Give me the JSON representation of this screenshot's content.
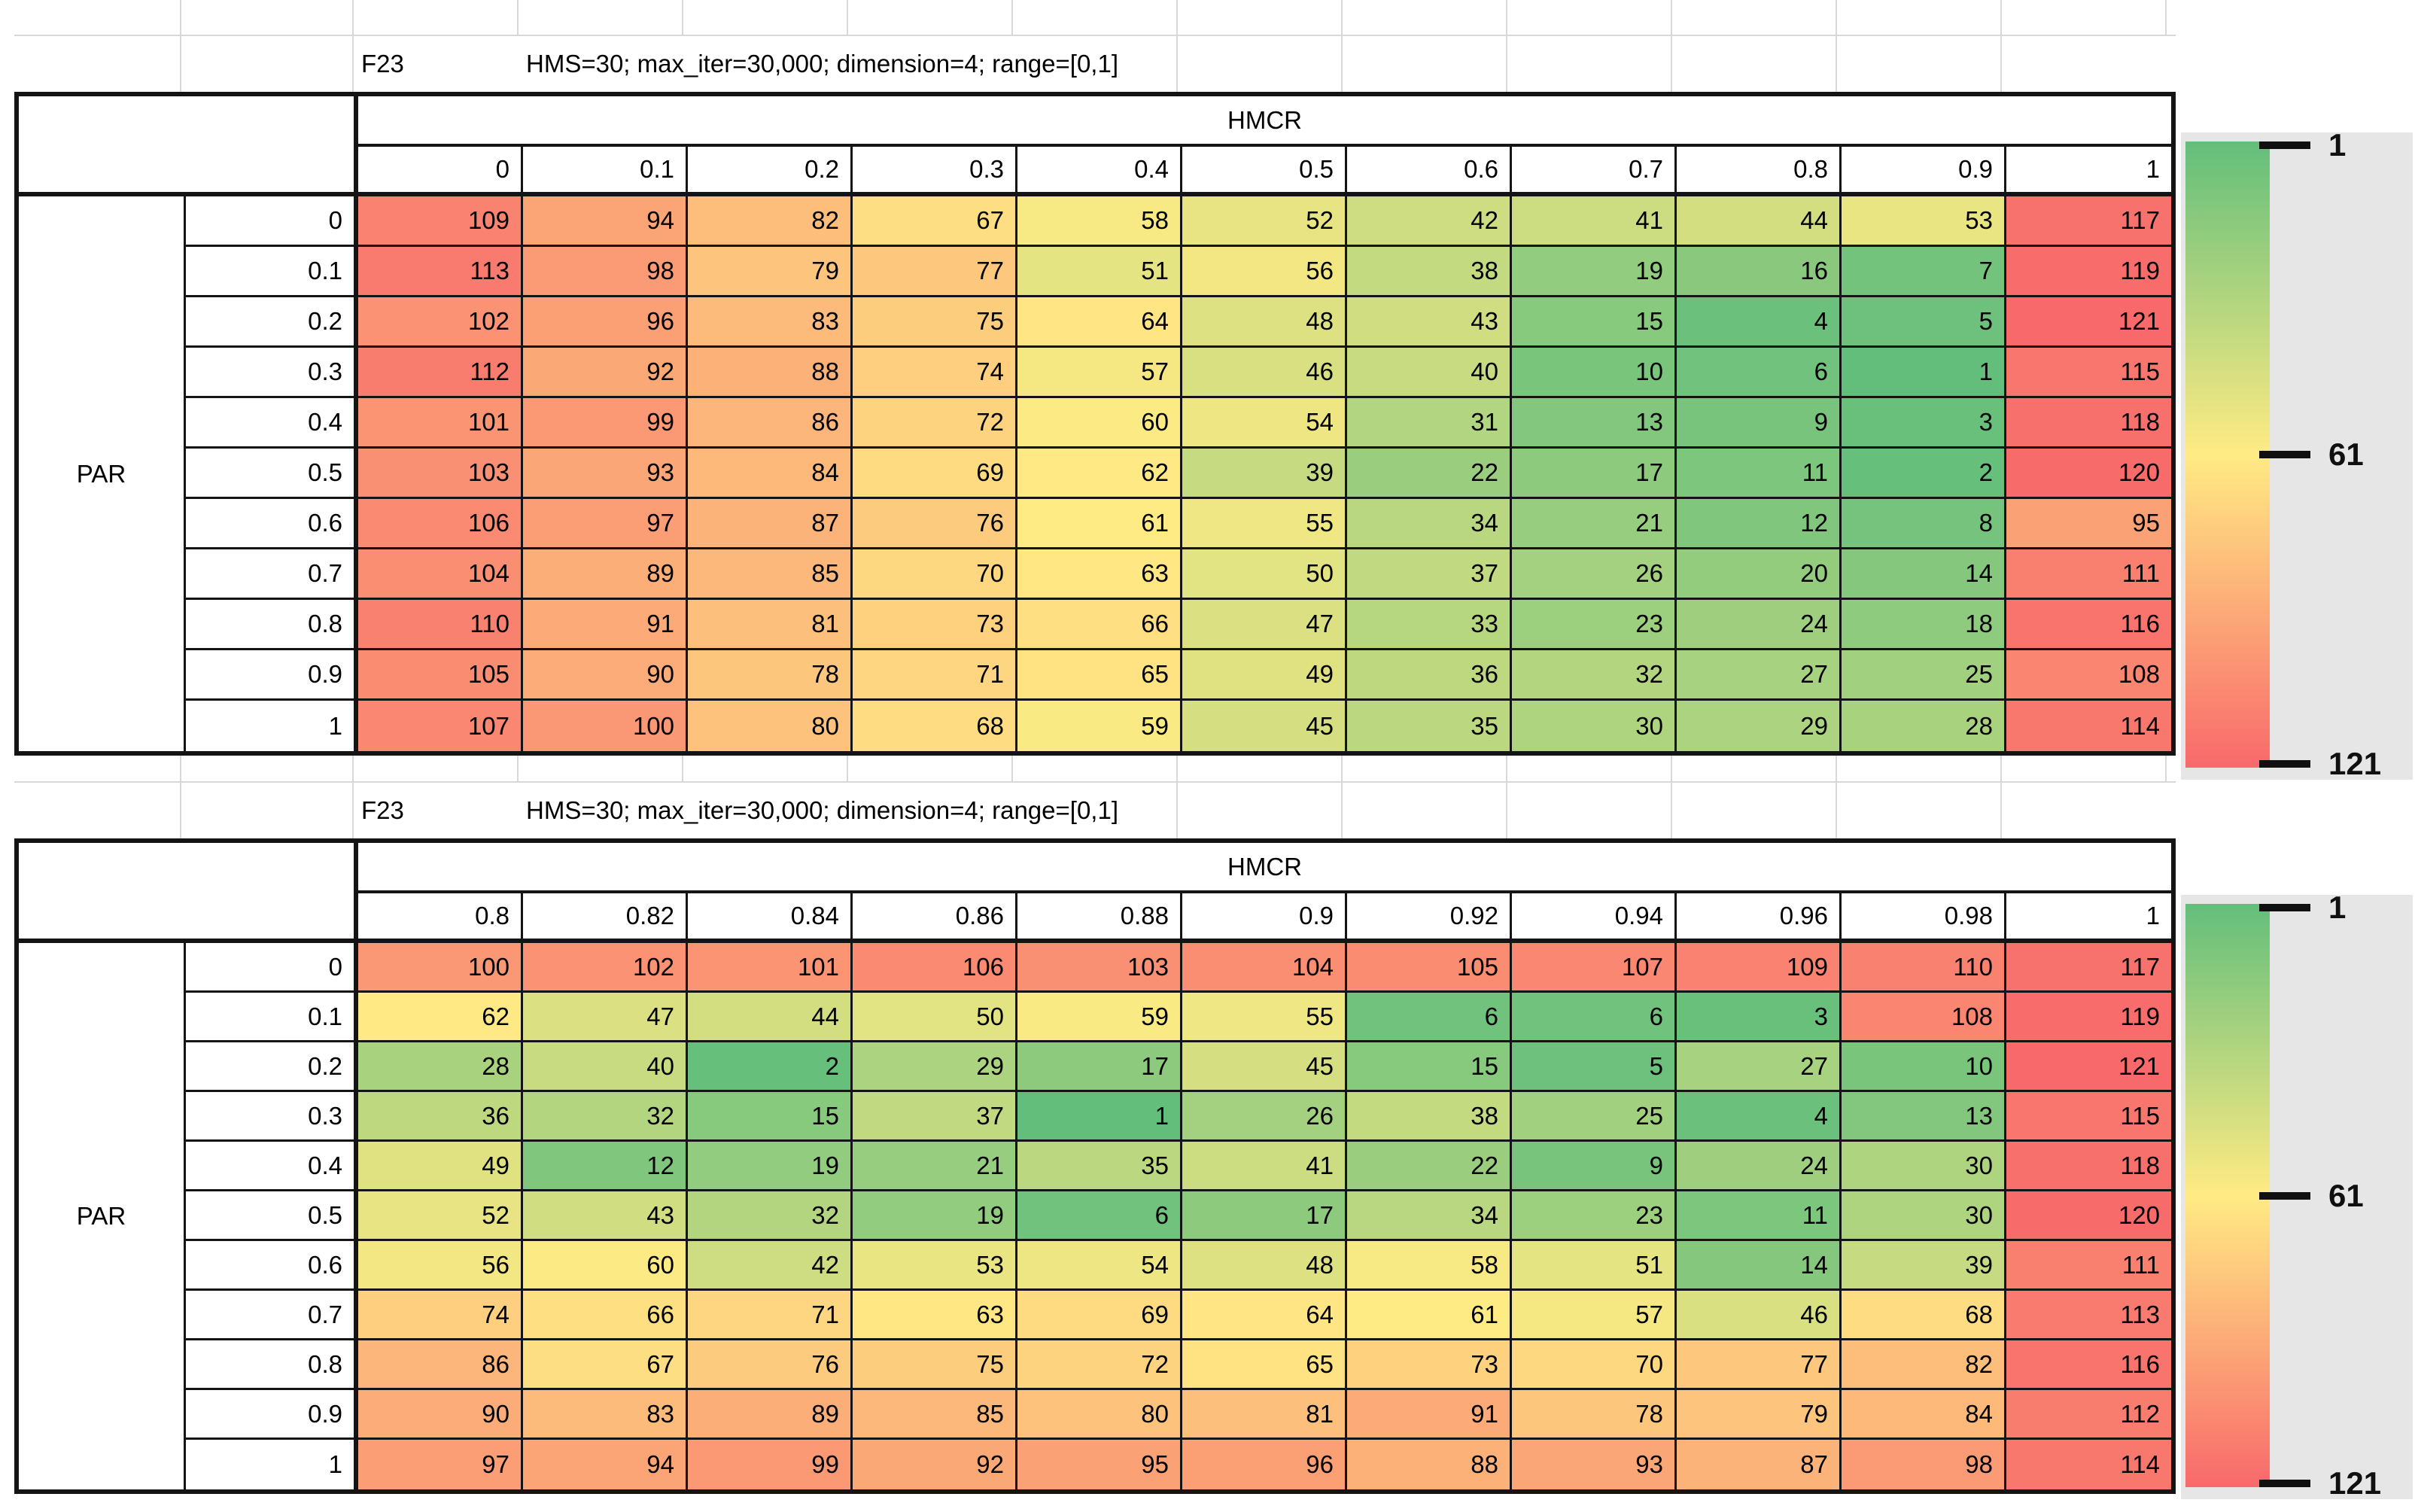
{
  "palette": {
    "scale_green": "#63BE7B",
    "scale_yellow": "#FFEB84",
    "scale_red": "#F8696B",
    "legend_bg": "#E7E6E6",
    "grid_faint": "#D8D8D8",
    "grid_black": "#141414"
  },
  "legend": {
    "ticks": [
      "1",
      "61",
      "121"
    ]
  },
  "chart_data": [
    {
      "type": "heatmap",
      "title": "F23",
      "subtitle": "HMS=30; max_iter=30,000; dimension=4; range=[0,1]",
      "xlabel": "HMCR",
      "ylabel": "PAR",
      "x_ticks": [
        "0",
        "0.1",
        "0.2",
        "0.3",
        "0.4",
        "0.5",
        "0.6",
        "0.7",
        "0.8",
        "0.9",
        "1"
      ],
      "y_ticks": [
        "0",
        "0.1",
        "0.2",
        "0.3",
        "0.4",
        "0.5",
        "0.6",
        "0.7",
        "0.8",
        "0.9",
        "1"
      ],
      "values": [
        [
          109,
          94,
          82,
          67,
          58,
          52,
          42,
          41,
          44,
          53,
          117
        ],
        [
          113,
          98,
          79,
          77,
          51,
          56,
          38,
          19,
          16,
          7,
          119
        ],
        [
          102,
          96,
          83,
          75,
          64,
          48,
          43,
          15,
          4,
          5,
          121
        ],
        [
          112,
          92,
          88,
          74,
          57,
          46,
          40,
          10,
          6,
          1,
          115
        ],
        [
          101,
          99,
          86,
          72,
          60,
          54,
          31,
          13,
          9,
          3,
          118
        ],
        [
          103,
          93,
          84,
          69,
          62,
          39,
          22,
          17,
          11,
          2,
          120
        ],
        [
          106,
          97,
          87,
          76,
          61,
          55,
          34,
          21,
          12,
          8,
          95
        ],
        [
          104,
          89,
          85,
          70,
          63,
          50,
          37,
          26,
          20,
          14,
          111
        ],
        [
          110,
          91,
          81,
          73,
          66,
          47,
          33,
          23,
          24,
          18,
          116
        ],
        [
          105,
          90,
          78,
          71,
          65,
          49,
          36,
          32,
          27,
          25,
          108
        ],
        [
          107,
          100,
          80,
          68,
          59,
          45,
          35,
          30,
          29,
          28,
          114
        ]
      ],
      "colorscale": {
        "min": 1,
        "mid": 61,
        "max": 121
      },
      "legend_ticks": [
        "1",
        "61",
        "121"
      ]
    },
    {
      "type": "heatmap",
      "title": "F23",
      "subtitle": "HMS=30; max_iter=30,000; dimension=4; range=[0,1]",
      "xlabel": "HMCR",
      "ylabel": "PAR",
      "x_ticks": [
        "0.8",
        "0.82",
        "0.84",
        "0.86",
        "0.88",
        "0.9",
        "0.92",
        "0.94",
        "0.96",
        "0.98",
        "1"
      ],
      "y_ticks": [
        "0",
        "0.1",
        "0.2",
        "0.3",
        "0.4",
        "0.5",
        "0.6",
        "0.7",
        "0.8",
        "0.9",
        "1"
      ],
      "values": [
        [
          100,
          102,
          101,
          106,
          103,
          104,
          105,
          107,
          109,
          110,
          117
        ],
        [
          62,
          47,
          44,
          50,
          59,
          55,
          6,
          6,
          3,
          108,
          119
        ],
        [
          28,
          40,
          2,
          29,
          17,
          45,
          15,
          5,
          27,
          10,
          121
        ],
        [
          36,
          32,
          15,
          37,
          1,
          26,
          38,
          25,
          4,
          13,
          115
        ],
        [
          49,
          12,
          19,
          21,
          35,
          41,
          22,
          9,
          24,
          30,
          118
        ],
        [
          52,
          43,
          32,
          19,
          6,
          17,
          34,
          23,
          11,
          30,
          120
        ],
        [
          56,
          60,
          42,
          53,
          54,
          48,
          58,
          51,
          14,
          39,
          111
        ],
        [
          74,
          66,
          71,
          63,
          69,
          64,
          61,
          57,
          46,
          68,
          113
        ],
        [
          86,
          67,
          76,
          75,
          72,
          65,
          73,
          70,
          77,
          82,
          116
        ],
        [
          90,
          83,
          89,
          85,
          80,
          81,
          91,
          78,
          79,
          84,
          112
        ],
        [
          97,
          94,
          99,
          92,
          95,
          96,
          88,
          93,
          87,
          98,
          114
        ]
      ],
      "colorscale": {
        "min": 1,
        "mid": 61,
        "max": 121
      },
      "legend_ticks": [
        "1",
        "61",
        "121"
      ]
    }
  ]
}
